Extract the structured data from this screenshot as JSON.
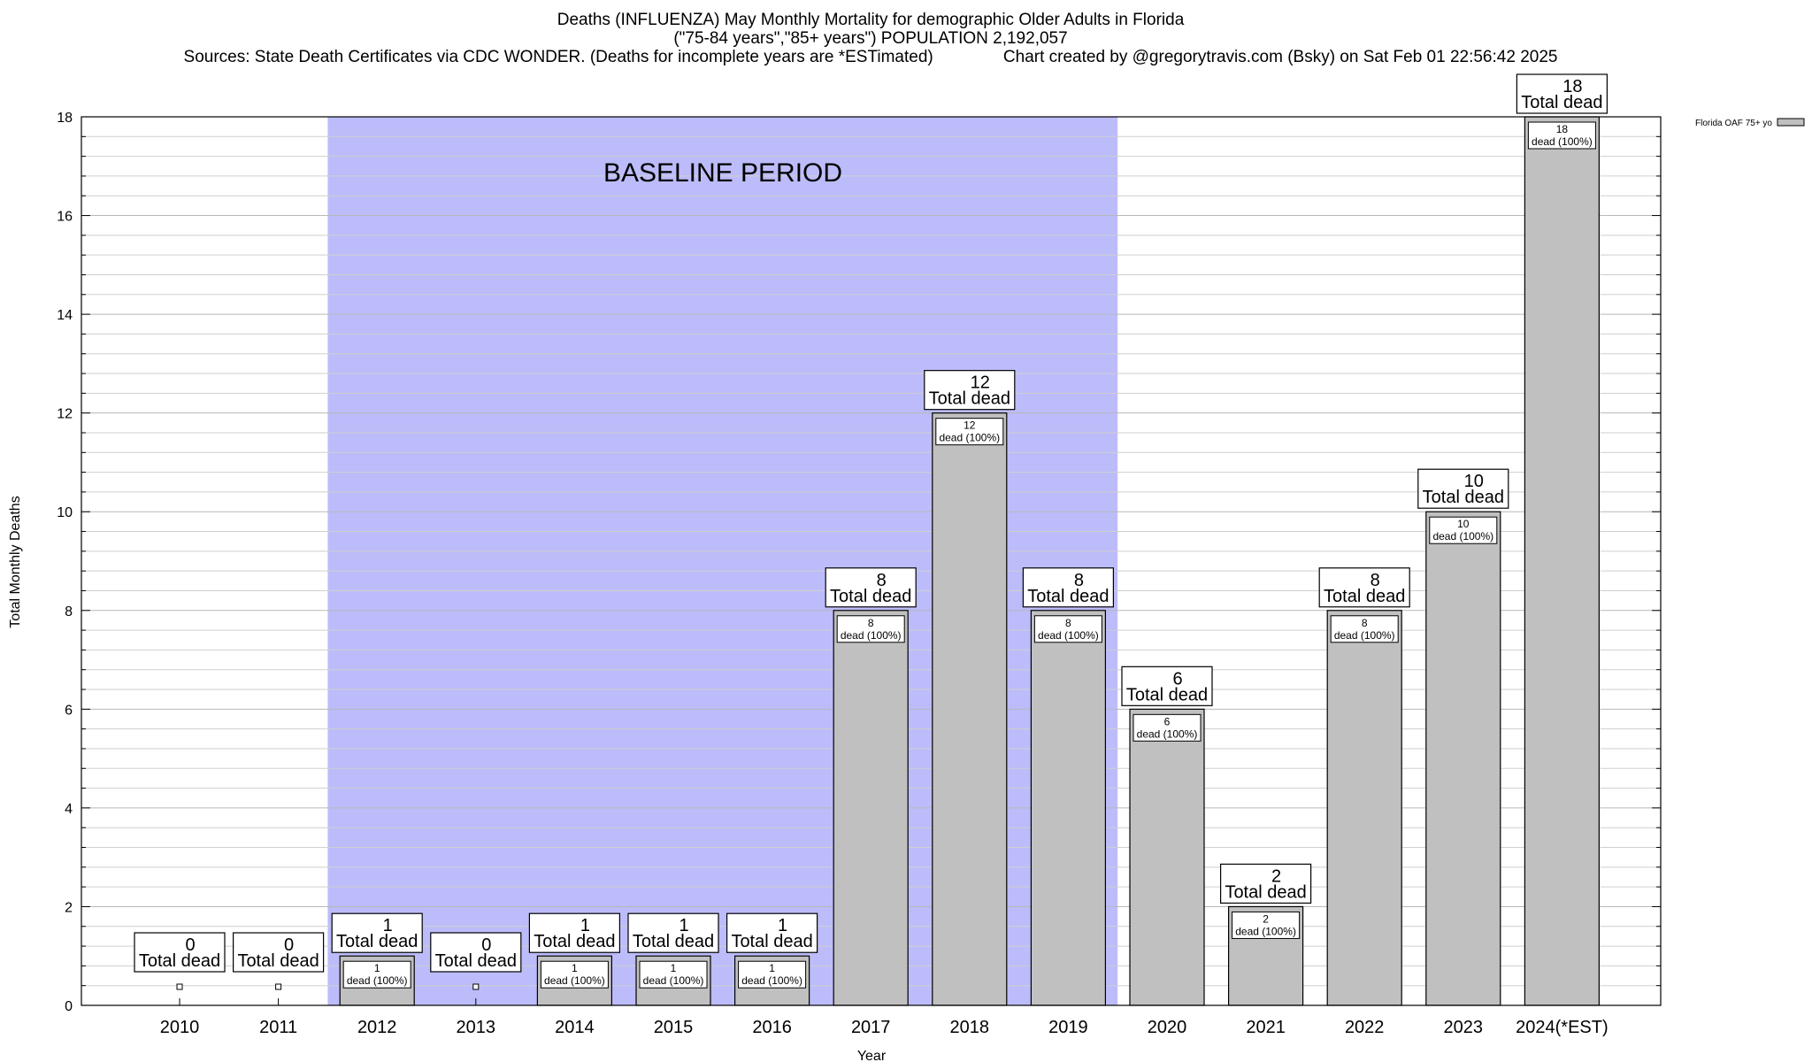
{
  "title_lines": [
    "Deaths (INFLUENZA) May Monthly Mortality for demographic Older Adults in Florida",
    "(\"75-84 years\",\"85+ years\") POPULATION 2,192,057",
    "Sources: State Death Certificates via CDC WONDER. (Deaths for incomplete years are *ESTimated)               Chart created by @gregorytravis.com (Bsky) on Sat Feb 01 22:56:42 2025"
  ],
  "chart_data": {
    "type": "bar",
    "categories": [
      "2010",
      "2011",
      "2012",
      "2013",
      "2014",
      "2015",
      "2016",
      "2017",
      "2018",
      "2019",
      "2020",
      "2021",
      "2022",
      "2023",
      "2024(*EST)"
    ],
    "series": [
      {
        "name": "Florida OAF 75+ yo",
        "values": [
          0,
          0,
          1,
          0,
          1,
          1,
          1,
          8,
          12,
          8,
          6,
          2,
          8,
          10,
          18
        ]
      }
    ],
    "xlabel": "Year",
    "ylabel": "Total Monthly Deaths",
    "ylim": [
      0,
      18
    ],
    "yticks": [
      0,
      2,
      4,
      6,
      8,
      10,
      12,
      14,
      16,
      18
    ],
    "grid": true,
    "legend_placement": "top-right",
    "total_label": "Total dead",
    "segment_label_suffix": "dead (100%)",
    "baseline": {
      "label": "BASELINE PERIOD",
      "start_category": "2012",
      "end_category": "2019",
      "color": "#bcbcfb"
    },
    "bar_color": "#c0c0c0"
  }
}
